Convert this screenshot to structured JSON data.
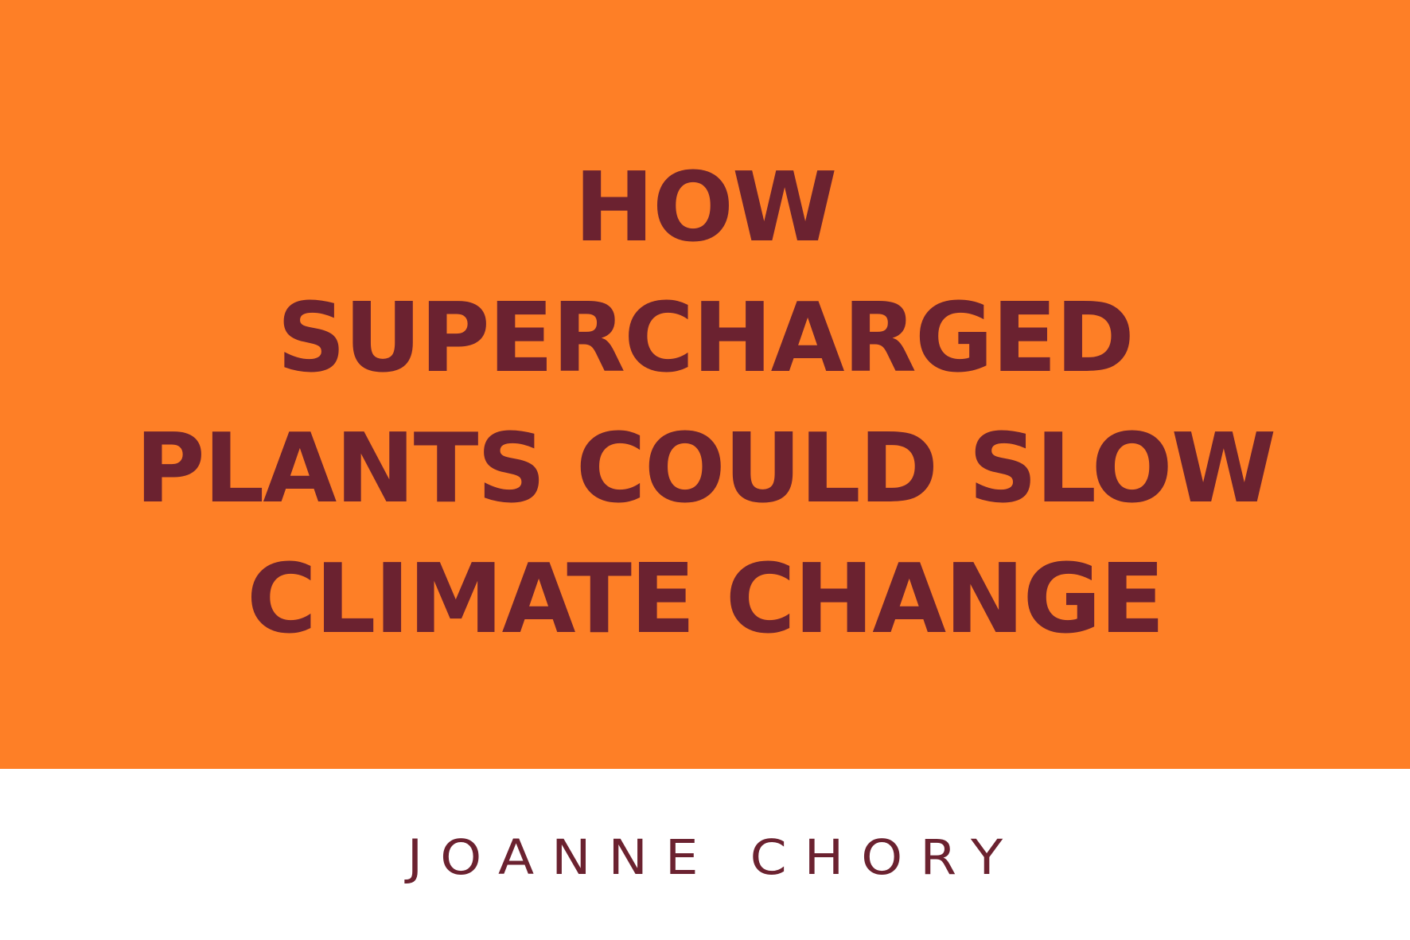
{
  "title_lines": [
    "HOW",
    "SUPERCHARGED",
    "PLANTS COULD SLOW",
    "CLIMATE CHANGE"
  ],
  "author": "JOANNE CHORY",
  "colors": {
    "banner": "#fe7f26",
    "text": "#6b2230",
    "footer": "#ffffff"
  }
}
